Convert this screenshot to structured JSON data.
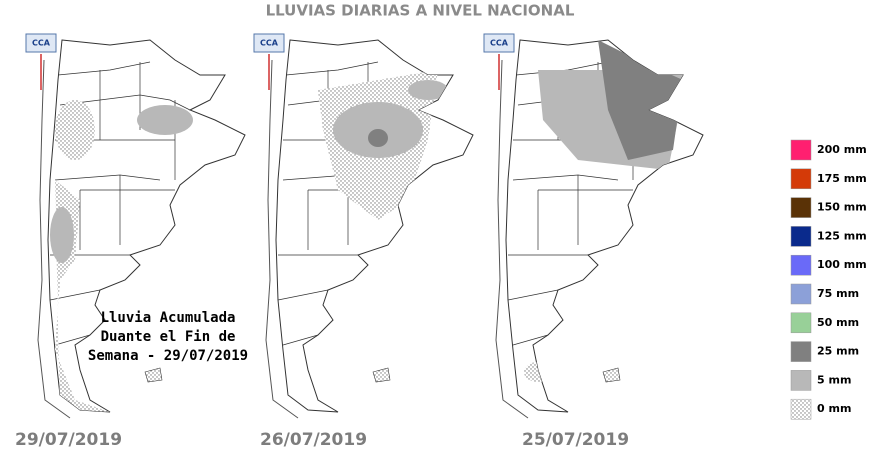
{
  "title": "LLUVIAS DIARIAS A NIVEL NACIONAL",
  "caption": [
    "Lluvia Acumulada",
    "Duante el Fin de",
    "Semana - 29/07/2019"
  ],
  "maps": [
    {
      "date": "29/07/2019",
      "logo": "CCA"
    },
    {
      "date": "26/07/2019",
      "logo": "CCA"
    },
    {
      "date": "25/07/2019",
      "logo": "CCA"
    }
  ],
  "legend": [
    {
      "label": "200 mm",
      "color": "#ff1f70"
    },
    {
      "label": "175 mm",
      "color": "#d43a08"
    },
    {
      "label": "150 mm",
      "color": "#5a3206"
    },
    {
      "label": "125 mm",
      "color": "#0a2a8c"
    },
    {
      "label": "100 mm",
      "color": "#6a6af8"
    },
    {
      "label": "75 mm",
      "color": "#8ca0d8"
    },
    {
      "label": "50 mm",
      "color": "#98d098"
    },
    {
      "label": "25 mm",
      "color": "#808080"
    },
    {
      "label": "5 mm",
      "color": "#b8b8b8"
    },
    {
      "label": "0 mm",
      "color": "dots"
    }
  ]
}
